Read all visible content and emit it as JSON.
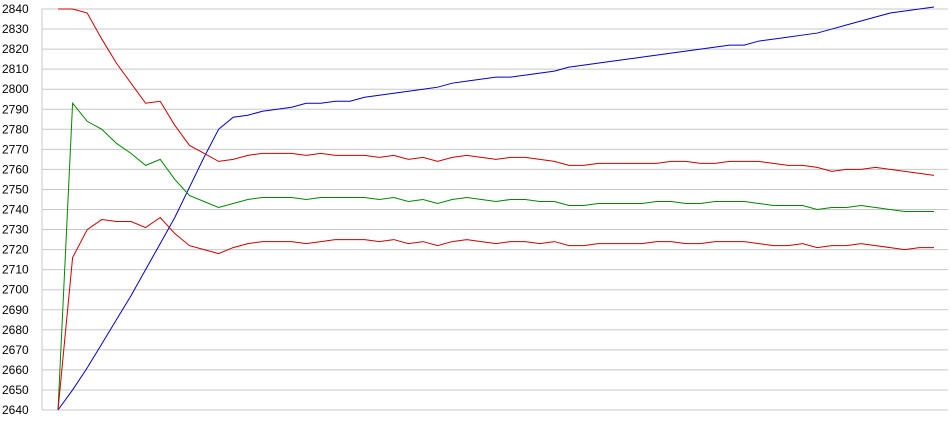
{
  "chart_data": {
    "type": "line",
    "title": "",
    "xlabel": "",
    "ylabel": "",
    "ylim": [
      2640,
      2840
    ],
    "yticks": [
      2640,
      2650,
      2660,
      2670,
      2680,
      2690,
      2700,
      2710,
      2720,
      2730,
      2740,
      2750,
      2760,
      2770,
      2780,
      2790,
      2800,
      2810,
      2820,
      2830,
      2840
    ],
    "grid": "horizontal",
    "legend": "none",
    "x": [
      0,
      1,
      2,
      3,
      4,
      5,
      6,
      7,
      8,
      9,
      10,
      11,
      12,
      13,
      14,
      15,
      16,
      17,
      18,
      19,
      20,
      21,
      22,
      23,
      24,
      25,
      26,
      27,
      28,
      29,
      30,
      31,
      32,
      33,
      34,
      35,
      36,
      37,
      38,
      39,
      40,
      41,
      42,
      43,
      44,
      45,
      46,
      47,
      48,
      49,
      50,
      51,
      52,
      53,
      54,
      55,
      56,
      57,
      58,
      59,
      60,
      61,
      62,
      63,
      64,
      65,
      66,
      67,
      68,
      69,
      70,
      71,
      72,
      73,
      74,
      75,
      76,
      77,
      78,
      79,
      80,
      81,
      82,
      83,
      84,
      85,
      86,
      87,
      88,
      89,
      90,
      91,
      92,
      93,
      94,
      95,
      96,
      97,
      98,
      99,
      100
    ],
    "series": [
      {
        "color": "#0000cc",
        "values": [
          2640,
          2650,
          2661,
          2673,
          2685,
          2697,
          2710,
          2723,
          2736,
          2751,
          2766,
          2780,
          2786,
          2787,
          2789,
          2790,
          2791,
          2793,
          2793,
          2794,
          2794,
          2796,
          2797,
          2798,
          2799,
          2800,
          2801,
          2803,
          2804,
          2805,
          2806,
          2806,
          2807,
          2808,
          2809,
          2811,
          2812,
          2813,
          2814,
          2815,
          2816,
          2817,
          2818,
          2819,
          2820,
          2821,
          2822,
          2822,
          2824,
          2825,
          2826,
          2827,
          2828,
          2830,
          2832,
          2834,
          2836,
          2838,
          2839,
          2840,
          2841,
          2841,
          2841,
          2841,
          2841,
          2841,
          2841,
          2841,
          2841,
          2841,
          2841,
          2841,
          2841,
          2841,
          2841,
          2841,
          2841,
          2841,
          2841,
          2841,
          2841,
          2841,
          2841,
          2841,
          2841,
          2841,
          2841,
          2841,
          2841,
          2841,
          2841,
          2841,
          2841,
          2841,
          2841,
          2841,
          2841,
          2841,
          2841,
          2841,
          2841
        ]
      },
      {
        "color": "#cc0000",
        "values": [
          2840,
          2840,
          2838,
          2825,
          2813,
          2803,
          2793,
          2794,
          2782,
          2772,
          2768,
          2764,
          2765,
          2767,
          2768,
          2768,
          2768,
          2767,
          2768,
          2767,
          2767,
          2767,
          2766,
          2767,
          2765,
          2766,
          2764,
          2766,
          2767,
          2766,
          2765,
          2766,
          2766,
          2765,
          2764,
          2762,
          2762,
          2763,
          2763,
          2763,
          2763,
          2763,
          2764,
          2764,
          2763,
          2763,
          2764,
          2764,
          2764,
          2763,
          2762,
          2762,
          2761,
          2759,
          2760,
          2760,
          2761,
          2760,
          2759,
          2758,
          2757,
          2757,
          2757,
          2757,
          2757,
          2757,
          2757,
          2757,
          2757,
          2757,
          2757,
          2757,
          2757,
          2757,
          2757,
          2757,
          2757,
          2757,
          2757,
          2757,
          2757,
          2757,
          2757,
          2757,
          2757,
          2757,
          2757,
          2757,
          2757,
          2757,
          2757,
          2757,
          2757,
          2757,
          2757,
          2757,
          2757,
          2757,
          2757,
          2757,
          2757
        ]
      },
      {
        "color": "#008800",
        "values": [
          2640,
          2793,
          2784,
          2780,
          2773,
          2768,
          2762,
          2765,
          2755,
          2747,
          2744,
          2741,
          2743,
          2745,
          2746,
          2746,
          2746,
          2745,
          2746,
          2746,
          2746,
          2746,
          2745,
          2746,
          2744,
          2745,
          2743,
          2745,
          2746,
          2745,
          2744,
          2745,
          2745,
          2744,
          2744,
          2742,
          2742,
          2743,
          2743,
          2743,
          2743,
          2744,
          2744,
          2743,
          2743,
          2744,
          2744,
          2744,
          2743,
          2742,
          2742,
          2742,
          2740,
          2741,
          2741,
          2742,
          2741,
          2740,
          2739,
          2739,
          2739,
          2739,
          2739,
          2739,
          2739,
          2739,
          2739,
          2739,
          2739,
          2739,
          2739,
          2739,
          2739,
          2739,
          2739,
          2739,
          2739,
          2739,
          2739,
          2739,
          2739,
          2739,
          2739,
          2739,
          2739,
          2739,
          2739,
          2739,
          2739,
          2739,
          2739,
          2739,
          2739,
          2739,
          2739,
          2739,
          2739,
          2739,
          2739,
          2739,
          2739
        ]
      },
      {
        "color": "#cc0000",
        "values": [
          2640,
          2716,
          2730,
          2735,
          2734,
          2734,
          2731,
          2736,
          2728,
          2722,
          2720,
          2718,
          2721,
          2723,
          2724,
          2724,
          2724,
          2723,
          2724,
          2725,
          2725,
          2725,
          2724,
          2725,
          2723,
          2724,
          2722,
          2724,
          2725,
          2724,
          2723,
          2724,
          2724,
          2723,
          2724,
          2722,
          2722,
          2723,
          2723,
          2723,
          2723,
          2724,
          2724,
          2723,
          2723,
          2724,
          2724,
          2724,
          2723,
          2722,
          2722,
          2723,
          2721,
          2722,
          2722,
          2723,
          2722,
          2721,
          2720,
          2721,
          2721,
          2721,
          2721,
          2721,
          2721,
          2721,
          2721,
          2721,
          2721,
          2721,
          2721,
          2721,
          2721,
          2721,
          2721,
          2721,
          2721,
          2721,
          2721,
          2721,
          2721,
          2721,
          2721,
          2721,
          2721,
          2721,
          2721,
          2721,
          2721,
          2721,
          2721,
          2721,
          2721,
          2721,
          2721,
          2721,
          2721,
          2721,
          2721,
          2721,
          2721
        ]
      }
    ]
  }
}
